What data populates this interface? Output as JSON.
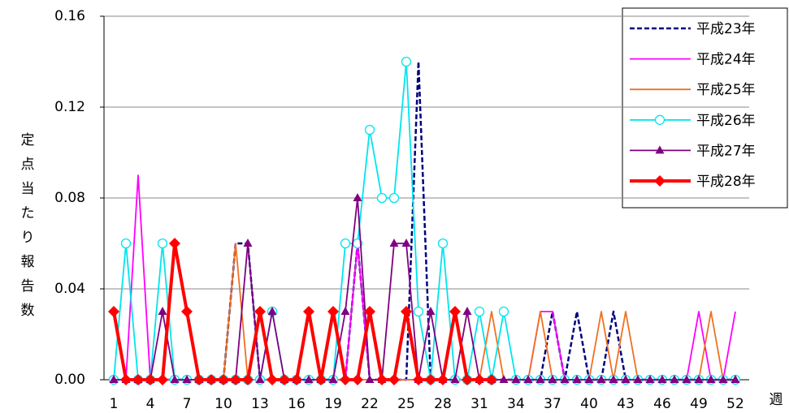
{
  "chart_data": {
    "type": "line",
    "y_label": "定点当たり報告数",
    "x_label": "週",
    "categories": [
      1,
      null,
      null,
      4,
      null,
      null,
      7,
      null,
      null,
      10,
      null,
      null,
      13,
      null,
      null,
      16,
      null,
      null,
      19,
      null,
      null,
      22,
      null,
      null,
      25,
      null,
      null,
      28,
      null,
      null,
      31,
      null,
      null,
      34,
      null,
      null,
      37,
      null,
      null,
      40,
      null,
      null,
      43,
      null,
      null,
      46,
      null,
      null,
      49,
      null,
      null,
      52
    ],
    "ylim": [
      0,
      0.16
    ],
    "yticks": [
      {
        "value": 0,
        "label": "0.00"
      },
      0.04,
      0.08,
      0.12,
      0.16
    ],
    "grid": true,
    "legend": "top-right",
    "series": [
      {
        "name": "平成23年",
        "color": "#000080",
        "dash": true,
        "marker": "none",
        "values": [
          0,
          0,
          0,
          0,
          0,
          0,
          0,
          0,
          0,
          0,
          0.06,
          0.06,
          0,
          0,
          0,
          0,
          0,
          0,
          0,
          0,
          0.06,
          0,
          0,
          0,
          0,
          0.14,
          0,
          0,
          0,
          0,
          0,
          0,
          0,
          0,
          0,
          0,
          0.03,
          0,
          0.03,
          0,
          0,
          0.03,
          0,
          0,
          0,
          0,
          0,
          0,
          0,
          0,
          0,
          0
        ]
      },
      {
        "name": "平成24年",
        "color": "#ff00ff",
        "marker": "none",
        "values": [
          0,
          0,
          0.09,
          0,
          0,
          0,
          0,
          0,
          0,
          0,
          0,
          0,
          0,
          0,
          0,
          0,
          0,
          0,
          0,
          0,
          0.06,
          0,
          0,
          0,
          0,
          0,
          0,
          0,
          0,
          0,
          0,
          0,
          0,
          0,
          0,
          0.03,
          0.03,
          0,
          0,
          0,
          0,
          0,
          0,
          0,
          0,
          0,
          0,
          0,
          0.03,
          0,
          0,
          0.03
        ]
      },
      {
        "name": "平成25年",
        "color": "#f07020",
        "marker": "none",
        "values": [
          0,
          0,
          0,
          0,
          0,
          0,
          0,
          0,
          0,
          0,
          0.06,
          0,
          0,
          0,
          0,
          0,
          0,
          0,
          0,
          0,
          0,
          0,
          0,
          0,
          0,
          0,
          0,
          0,
          0,
          0,
          0,
          0.03,
          0,
          0,
          0,
          0.03,
          0,
          0,
          0,
          0,
          0.03,
          0,
          0.03,
          0,
          0,
          0,
          0,
          0,
          0,
          0.03,
          0,
          0
        ]
      },
      {
        "name": "平成26年",
        "color": "#00e5ee",
        "marker": "circle",
        "values": [
          0,
          0.06,
          0,
          0,
          0.06,
          0,
          0,
          0,
          0,
          0,
          0,
          0,
          0,
          0.03,
          0,
          0,
          0,
          0,
          0,
          0.06,
          0.06,
          0.11,
          0.08,
          0.08,
          0.14,
          0.03,
          0,
          0.06,
          0,
          0,
          0.03,
          0,
          0.03,
          0,
          0,
          0,
          0,
          0,
          0,
          0,
          0,
          0,
          0,
          0,
          0,
          0,
          0,
          0,
          0,
          0,
          0,
          0
        ]
      },
      {
        "name": "平成27年",
        "color": "#800080",
        "marker": "triangle",
        "values": [
          0,
          0,
          0,
          0,
          0.03,
          0,
          0,
          0,
          0,
          0,
          0,
          0.06,
          0,
          0.03,
          0,
          0,
          0,
          0,
          0,
          0.03,
          0.08,
          0,
          0,
          0.06,
          0.06,
          0,
          0.03,
          0,
          0,
          0.03,
          0,
          0,
          0,
          0,
          0,
          0,
          0,
          0,
          0,
          0,
          0,
          0,
          0,
          0,
          0,
          0,
          0,
          0,
          0,
          0,
          0,
          0
        ]
      },
      {
        "name": "平成28年",
        "color": "#ff0000",
        "marker": "diamond",
        "thick": true,
        "values": [
          0.03,
          0,
          0,
          0,
          0,
          0.06,
          0.03,
          0,
          0,
          0,
          0,
          0,
          0.03,
          0,
          0,
          0,
          0.03,
          0,
          0.03,
          0,
          0,
          0.03,
          0,
          0,
          0.03,
          0,
          0,
          0,
          0.03,
          0,
          0,
          0,
          null,
          null,
          null,
          null,
          null,
          null,
          null,
          null,
          null,
          null,
          null,
          null,
          null,
          null,
          null,
          null,
          null,
          null,
          null,
          null
        ]
      }
    ]
  }
}
